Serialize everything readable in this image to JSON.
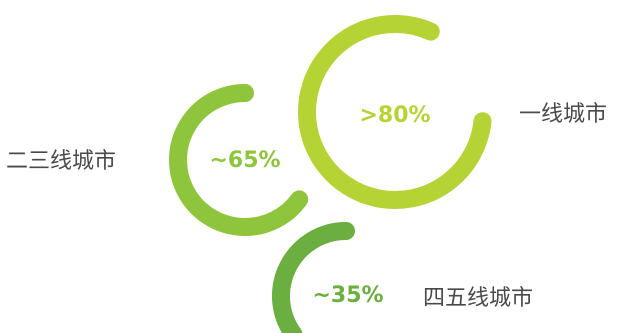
{
  "chart_data": {
    "type": "ring",
    "series": [
      {
        "label": "一线城市",
        "value_text": ">80%",
        "value": 80,
        "color": "#b5d334"
      },
      {
        "label": "二三线城市",
        "value_text": "~65%",
        "value": 65,
        "color": "#8fc43d"
      },
      {
        "label": "四五线城市",
        "value_text": "~35%",
        "value": 35,
        "color": "#6aaf3f"
      }
    ]
  }
}
